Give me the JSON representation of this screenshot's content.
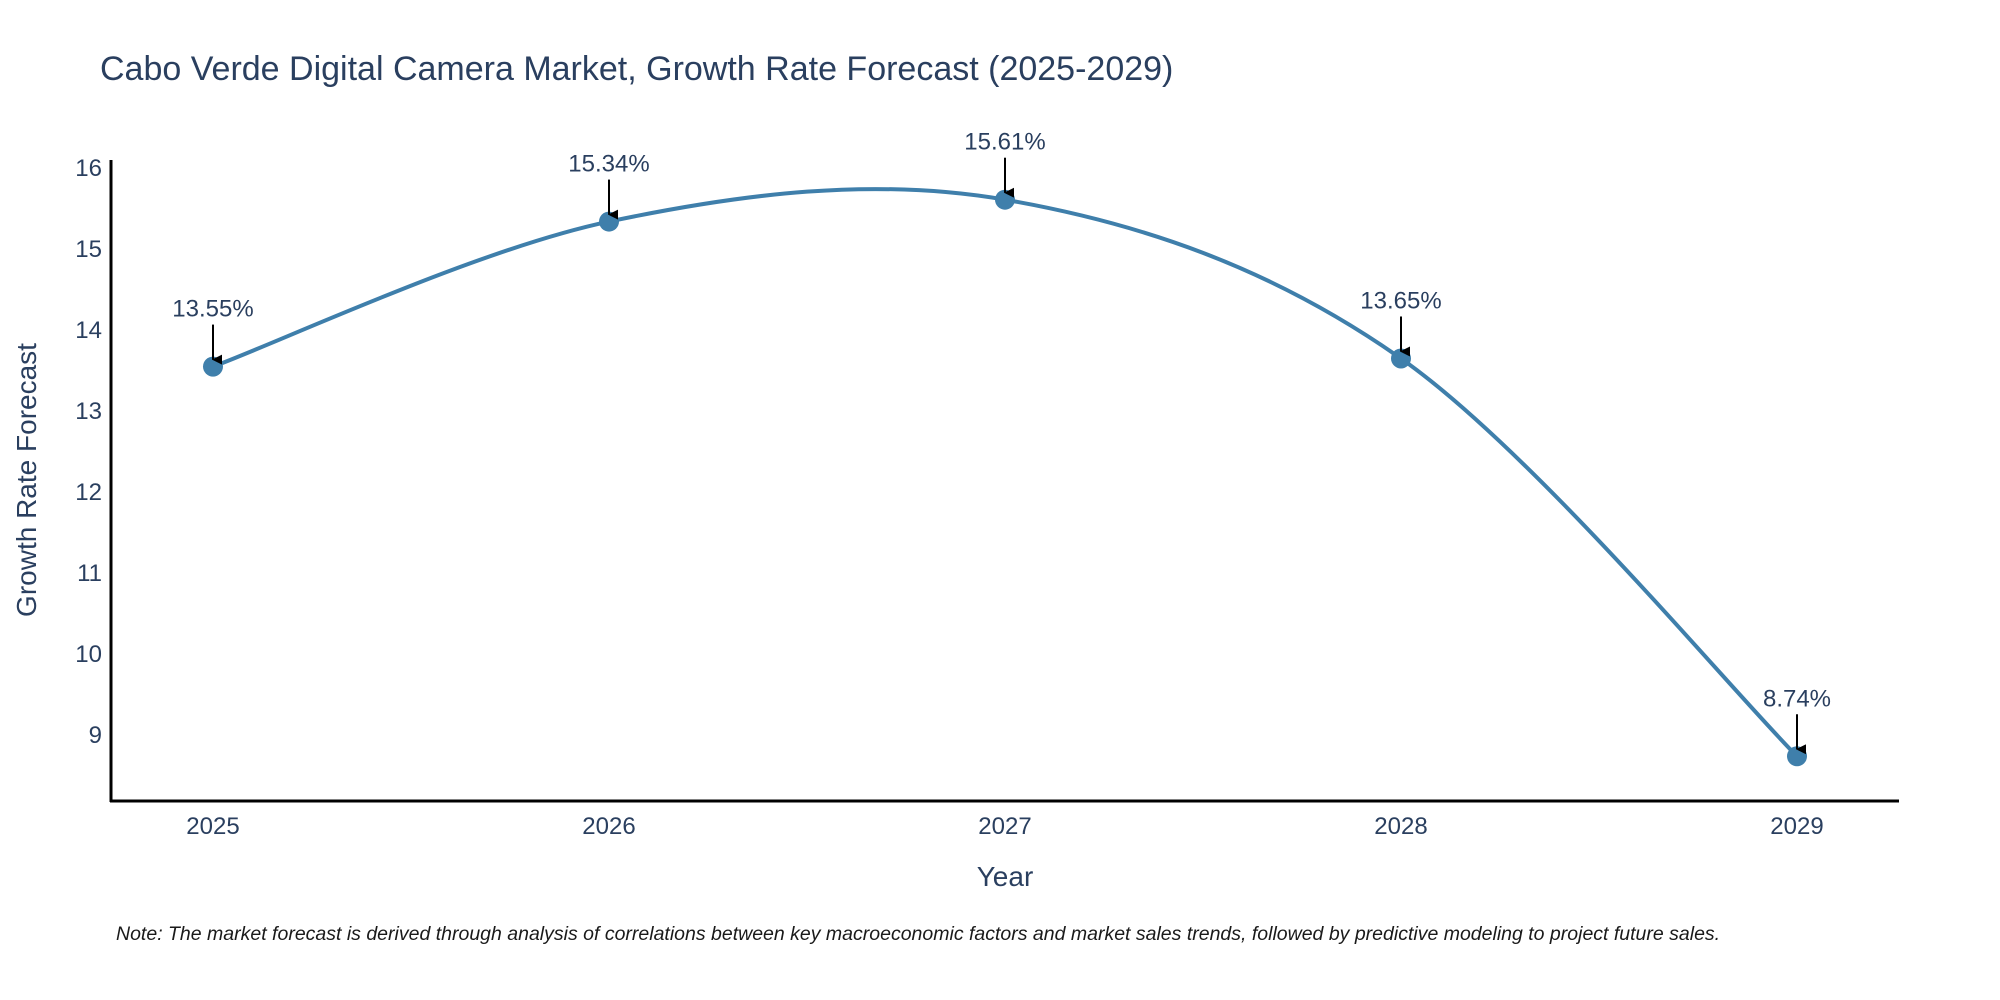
{
  "chart_data": {
    "type": "line",
    "title": "Cabo Verde Digital Camera Market, Growth Rate Forecast (2025-2029)",
    "xlabel": "Year",
    "ylabel": "Growth Rate Forecast",
    "categories": [
      "2025",
      "2026",
      "2027",
      "2028",
      "2029"
    ],
    "series": [
      {
        "name": "Growth Rate Forecast",
        "values": [
          13.55,
          15.34,
          15.61,
          13.65,
          8.74
        ],
        "labels": [
          "13.55%",
          "15.34%",
          "15.61%",
          "13.65%",
          "8.74%"
        ],
        "color": "#3f7fab"
      }
    ],
    "yticks": [
      9,
      10,
      11,
      12,
      13,
      14,
      15,
      16
    ],
    "ylim": [
      8.2,
      16.1
    ],
    "line_shape": "spline",
    "grid": false,
    "note": "Note: The market forecast is derived through analysis of correlations between key macroeconomic factors and market sales trends, followed by predictive modeling to project future sales."
  }
}
